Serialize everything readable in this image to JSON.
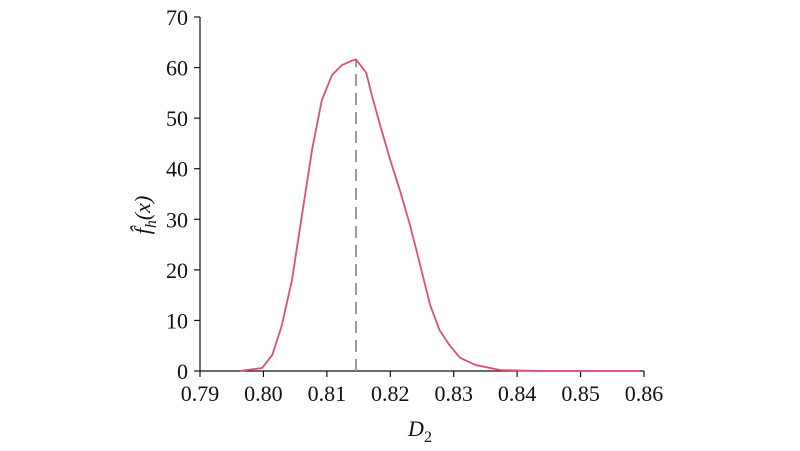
{
  "chart_data": {
    "type": "line",
    "xlabel": {
      "base": "D",
      "sub": "2"
    },
    "ylabel": {
      "base": "f̂",
      "sub": "h",
      "rest": "(x)"
    },
    "series": [
      {
        "color": "#e0506a",
        "x": [
          0.7963,
          0.7998,
          0.8014,
          0.8029,
          0.8045,
          0.8061,
          0.8077,
          0.8092,
          0.8108,
          0.8124,
          0.814,
          0.8146,
          0.8162,
          0.8171,
          0.8184,
          0.82,
          0.8215,
          0.8231,
          0.8247,
          0.8263,
          0.8278,
          0.8294,
          0.831,
          0.8334,
          0.8373,
          0.8436,
          0.8594
        ],
        "values": [
          0,
          0.6,
          3.2,
          9,
          18,
          31,
          44,
          53.5,
          58.5,
          60.5,
          61.4,
          61.6,
          59,
          54.5,
          48.6,
          41.7,
          35.8,
          28.9,
          21,
          13,
          8,
          5,
          2.6,
          1.2,
          0.2,
          0,
          0
        ]
      }
    ],
    "reference_line": {
      "x": 0.8146,
      "y": 61.6,
      "color": "#999999"
    },
    "xlim": [
      0.79,
      0.86
    ],
    "xticks": [
      0.79,
      {
        "value": 0.8,
        "label": "0.80"
      },
      0.81,
      0.82,
      0.83,
      0.84,
      0.85,
      0.86
    ],
    "ylim": [
      0,
      70
    ],
    "yticks": [
      0,
      10,
      20,
      30,
      40,
      50,
      60,
      70
    ]
  }
}
